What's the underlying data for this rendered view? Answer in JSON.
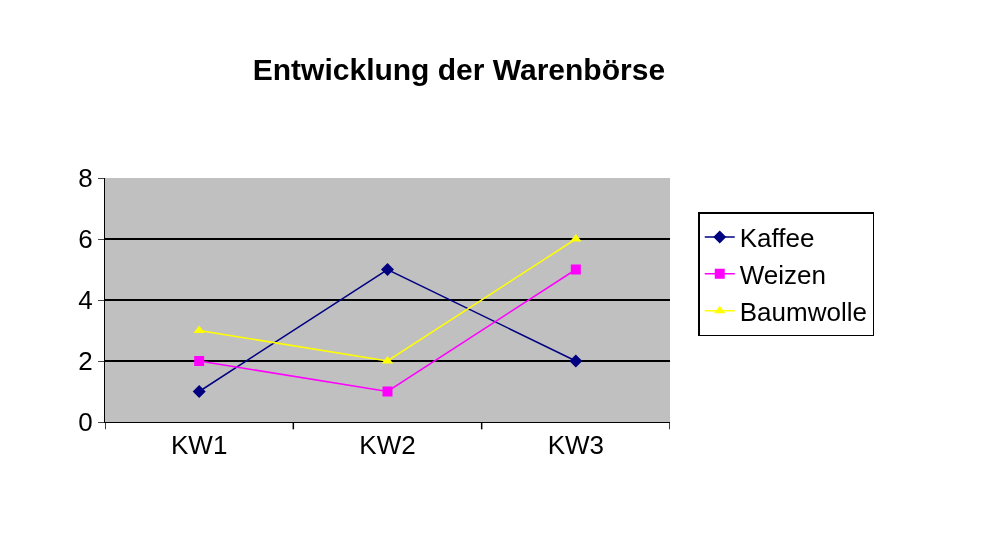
{
  "chart_data": {
    "type": "line",
    "title": "Entwicklung der Warenbörse",
    "categories": [
      "KW1",
      "KW2",
      "KW3"
    ],
    "series": [
      {
        "name": "Kaffee",
        "color": "#000080",
        "marker": "diamond",
        "values": [
          1,
          5,
          2
        ]
      },
      {
        "name": "Weizen",
        "color": "#ff00ff",
        "marker": "square",
        "values": [
          2,
          1,
          5
        ]
      },
      {
        "name": "Baumwolle",
        "color": "#ffff00",
        "marker": "triangle",
        "values": [
          3,
          2,
          6
        ]
      }
    ],
    "ylim": [
      0,
      8
    ],
    "yticks": [
      0,
      2,
      4,
      6,
      8
    ],
    "grid": "y",
    "legend": "right",
    "line_style": "solid"
  }
}
